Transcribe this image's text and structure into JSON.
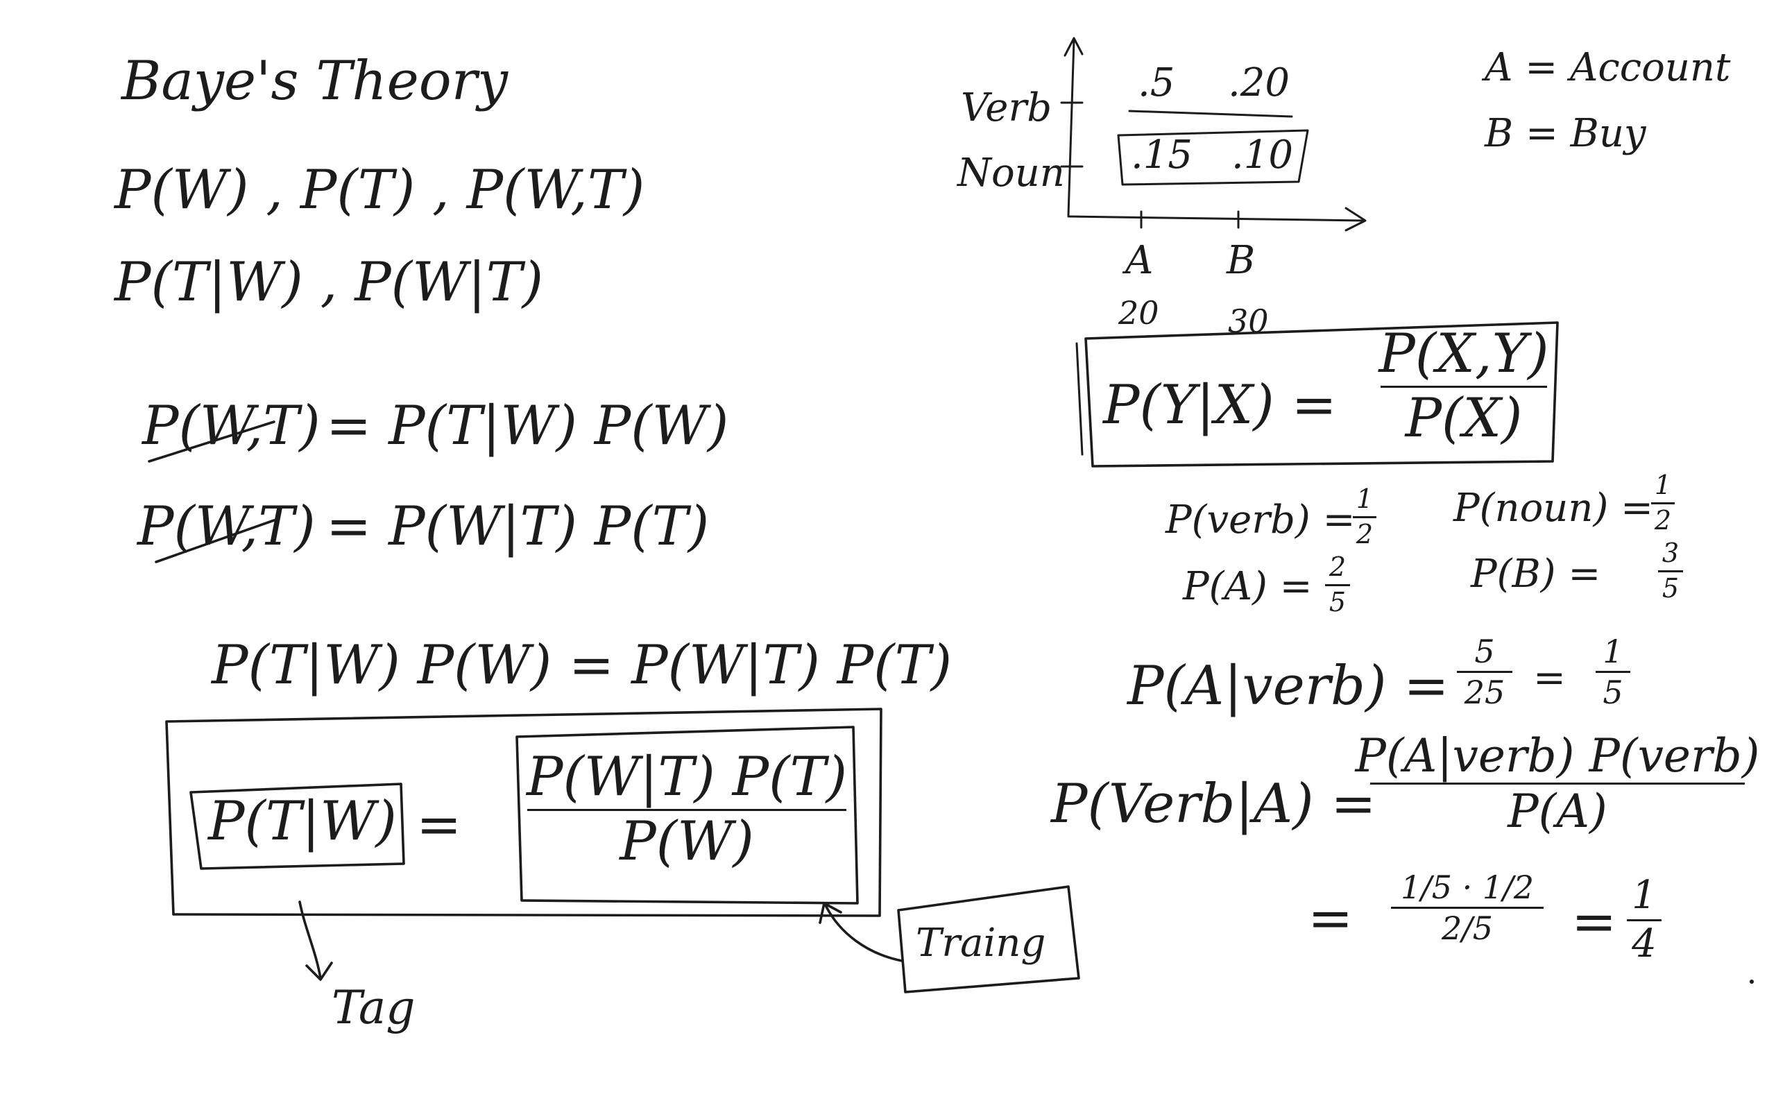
{
  "title": "Baye's Theory",
  "notation": {
    "line1": "P(W) , P(T) , P(W,T)",
    "line2": "P(T|W) , P(W|T)"
  },
  "joint": {
    "eq1_lhs": "P(W,T)",
    "eq1_rhs": "= P(T|W) P(W)",
    "eq2_lhs": "P(W,T)",
    "eq2_rhs": "= P(W|T) P(T)"
  },
  "combined": {
    "equation": "P(T|W) P(W) = P(W|T) P(T)",
    "boxed_lhs": "P(T|W)",
    "equals": "=",
    "boxed_num": "P(W|T) P(T)",
    "boxed_den": "P(W)",
    "tag_label": "Tag",
    "training_label": "Traing"
  },
  "grid_chart": {
    "rows": [
      "Verb",
      "Noun"
    ],
    "cols": [
      "A",
      "B"
    ],
    "col_totals": [
      "20",
      "30"
    ],
    "cells": [
      [
        ".5",
        ".20"
      ],
      [
        ".15",
        ".10"
      ]
    ]
  },
  "legend": {
    "a_def": "A = Account",
    "b_def": "B = Buy"
  },
  "bayes_rule": {
    "lhs": "P(Y|X) =",
    "num": "P(X,Y)",
    "den": "P(X)"
  },
  "priors": {
    "p_verb_lhs": "P(verb) =",
    "p_verb_num": "1",
    "p_verb_den": "2",
    "p_noun_lhs": "P(noun) =",
    "p_noun_num": "1",
    "p_noun_den": "2",
    "p_a_lhs": "P(A) =",
    "p_a_num": "2",
    "p_a_den": "5",
    "p_b_lhs": "P(B) =",
    "p_b_num": "3",
    "p_b_den": "5"
  },
  "conditional": {
    "lhs": "P(A|verb) =",
    "num1": "5",
    "den1": "25",
    "eq": "=",
    "num2": "1",
    "den2": "5"
  },
  "posterior": {
    "lhs": "P(Verb|A) =",
    "num": "P(A|verb) P(verb)",
    "den": "P(A)",
    "eq": "=",
    "step_num": "1/5 · 1/2",
    "step_den": "2/5",
    "eq2": "=",
    "result_num": "1",
    "result_den": "4"
  }
}
